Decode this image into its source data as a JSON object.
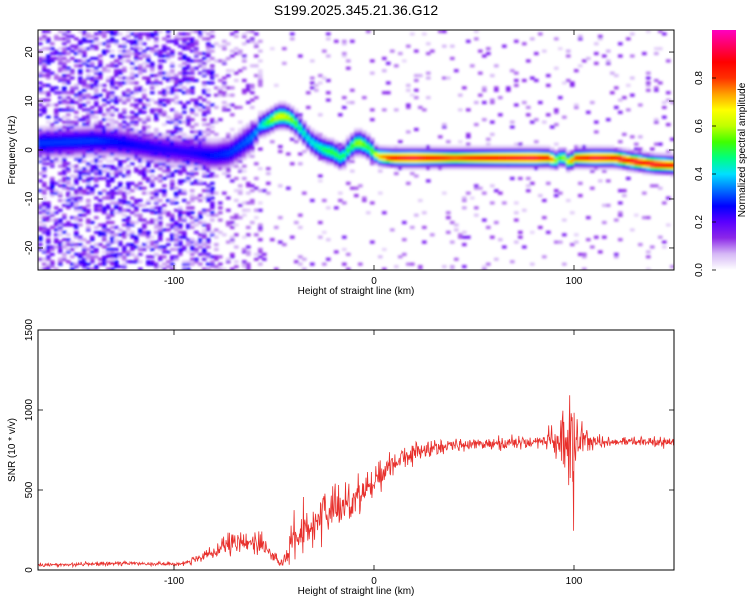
{
  "figure_title": "S199.2025.345.21.36.G12",
  "chart_data": [
    {
      "type": "heatmap",
      "title": "S199.2025.345.21.36.G12",
      "xlabel": "Height of straight line (km)",
      "ylabel": "Frequency (Hz)",
      "xlim": [
        -168,
        150
      ],
      "ylim": [
        -24.5,
        24.5
      ],
      "x_ticks": [
        -100,
        0,
        100
      ],
      "x_tick_labels": [
        "-100",
        "0",
        "100"
      ],
      "y_ticks": [
        -20,
        -10,
        0,
        10,
        20
      ],
      "y_tick_labels": [
        "-20",
        "-10",
        "0",
        "10",
        "20"
      ],
      "colorbar": {
        "label": "Normalized spectral amplitude",
        "range": [
          0,
          1
        ],
        "ticks": [
          0.0,
          0.2,
          0.4,
          0.6,
          0.8
        ],
        "tick_labels": [
          "0.0",
          "0.2",
          "0.4",
          "0.6",
          "0.8"
        ],
        "colors": [
          "#ffffff",
          "#d6b8f6",
          "#8c28e8",
          "#5a00ff",
          "#0000ff",
          "#0070ff",
          "#00e0ff",
          "#00ff80",
          "#40ff00",
          "#c0ff00",
          "#ffff00",
          "#ffa000",
          "#ff3000",
          "#ff0000",
          "#ff0060",
          "#ff00c0"
        ]
      },
      "ridge": {
        "x": [
          -168,
          -150,
          -140,
          -130,
          -120,
          -110,
          -100,
          -90,
          -80,
          -72,
          -65,
          -60,
          -57,
          -52,
          -48,
          -44,
          -40,
          -36,
          -32,
          -28,
          -24,
          -20,
          -18,
          -16,
          -14,
          -12,
          -10,
          -8,
          -6,
          -4,
          -2,
          0,
          2,
          10,
          20,
          40,
          60,
          80,
          88,
          90,
          92,
          94,
          96,
          98,
          100,
          110,
          120,
          130,
          140,
          150
        ],
        "y": [
          1.5,
          1.8,
          2.0,
          1.8,
          1.2,
          0.5,
          0.0,
          -0.5,
          -1.0,
          -0.5,
          1.5,
          3.0,
          5.0,
          6.0,
          7.0,
          7.0,
          6.0,
          4.0,
          2.0,
          0.8,
          0.0,
          -0.4,
          -1.2,
          -1.5,
          -0.5,
          0.5,
          1.3,
          1.7,
          1.4,
          1.0,
          0.3,
          -0.5,
          -1.2,
          -1.5,
          -1.5,
          -1.5,
          -1.5,
          -1.5,
          -1.5,
          -2.0,
          -2.0,
          -1.0,
          -2.0,
          -2.5,
          -1.5,
          -1.5,
          -1.5,
          -2.2,
          -2.8,
          -3.0
        ],
        "amplitude": [
          0.3,
          0.3,
          0.3,
          0.28,
          0.26,
          0.25,
          0.24,
          0.25,
          0.28,
          0.3,
          0.32,
          0.35,
          0.4,
          0.55,
          0.65,
          0.62,
          0.55,
          0.45,
          0.42,
          0.45,
          0.5,
          0.52,
          0.5,
          0.48,
          0.5,
          0.5,
          0.55,
          0.6,
          0.58,
          0.52,
          0.5,
          0.6,
          0.7,
          0.9,
          0.95,
          0.8,
          0.9,
          0.95,
          0.85,
          0.7,
          0.5,
          0.6,
          0.6,
          0.7,
          0.8,
          0.95,
          0.9,
          0.9,
          0.9,
          0.88
        ]
      }
    },
    {
      "type": "line",
      "title": "",
      "xlabel": "Height of straight line (km)",
      "ylabel": "SNR (10 * v/v)",
      "xlim": [
        -168,
        150
      ],
      "ylim": [
        0,
        1500
      ],
      "x_ticks": [
        -100,
        0,
        100
      ],
      "x_tick_labels": [
        "-100",
        "0",
        "100"
      ],
      "y_ticks": [
        0,
        500,
        1000,
        1500
      ],
      "y_tick_labels": [
        "0",
        "500",
        "1000",
        "1500"
      ],
      "line_color": "#e8302c",
      "series": [
        {
          "x": [
            -168,
            -160,
            -150,
            -140,
            -130,
            -120,
            -110,
            -100,
            -95,
            -90,
            -85,
            -80,
            -75,
            -70,
            -65,
            -60,
            -55,
            -50,
            -47,
            -45,
            -44,
            -40,
            -35,
            -30,
            -25,
            -20,
            -15,
            -10,
            -8,
            -5,
            0,
            5,
            10,
            15,
            20,
            25,
            30,
            35,
            40,
            50,
            60,
            70,
            80,
            85,
            90,
            95,
            98,
            100,
            102,
            105,
            110,
            120,
            130,
            140,
            150
          ],
          "y": [
            30,
            32,
            35,
            38,
            40,
            42,
            40,
            35,
            45,
            60,
            80,
            110,
            140,
            160,
            170,
            175,
            150,
            90,
            40,
            50,
            90,
            200,
            260,
            300,
            340,
            380,
            410,
            440,
            460,
            500,
            560,
            620,
            670,
            710,
            730,
            750,
            765,
            775,
            780,
            785,
            790,
            795,
            800,
            805,
            810,
            800,
            790,
            700,
            820,
            810,
            800,
            800,
            800,
            800,
            800
          ],
          "noise": [
            10,
            10,
            12,
            12,
            12,
            12,
            12,
            12,
            15,
            20,
            30,
            45,
            60,
            70,
            75,
            80,
            70,
            40,
            20,
            30,
            70,
            120,
            140,
            140,
            130,
            130,
            120,
            110,
            110,
            100,
            90,
            80,
            70,
            60,
            55,
            50,
            45,
            40,
            40,
            35,
            35,
            35,
            35,
            45,
            90,
            220,
            380,
            450,
            160,
            60,
            40,
            30,
            30,
            28,
            28
          ]
        }
      ]
    }
  ]
}
